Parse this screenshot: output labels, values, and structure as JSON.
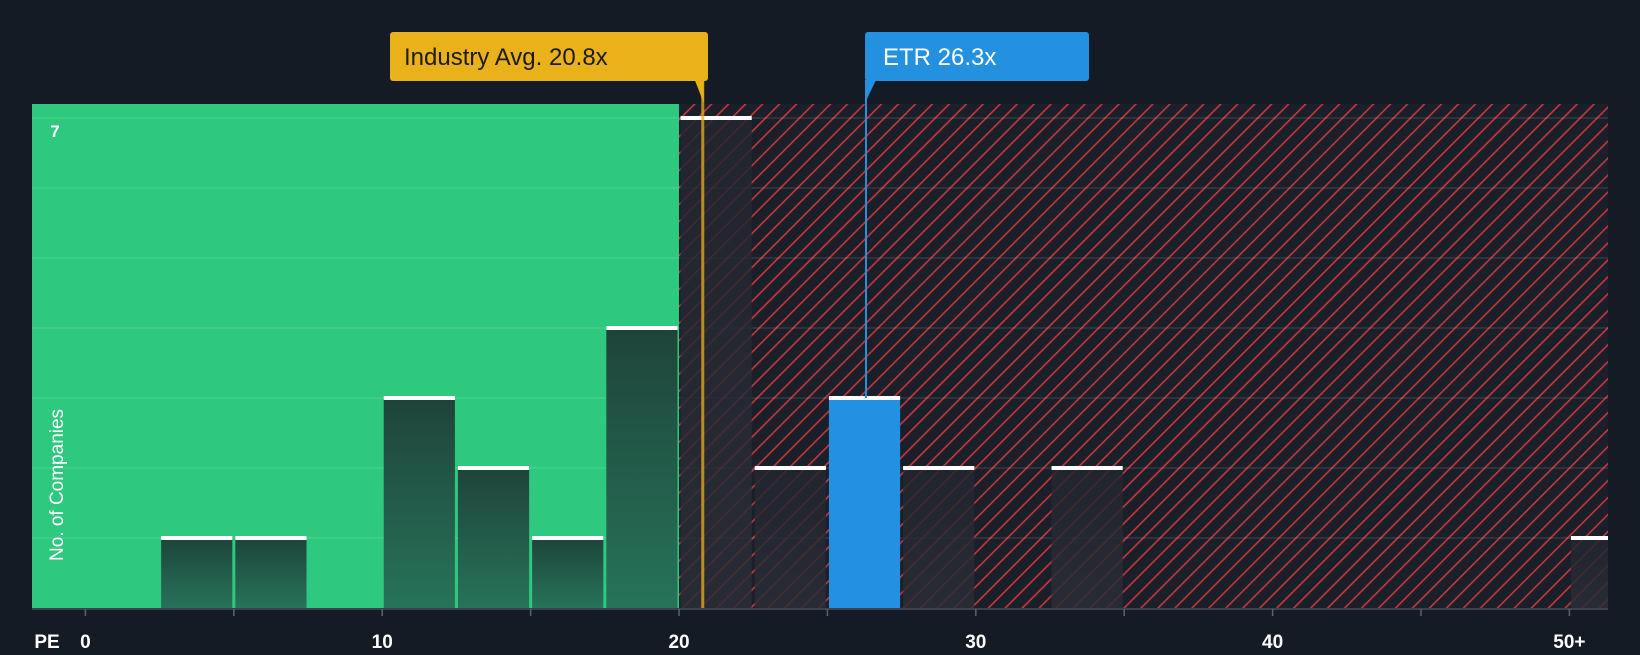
{
  "chart_data": {
    "type": "bar",
    "title": "",
    "xlabel": "PE",
    "ylabel": "No. of Companies",
    "x_ticks": [
      {
        "value": 0,
        "label": "0"
      },
      {
        "value": 10,
        "label": "10"
      },
      {
        "value": 20,
        "label": "20"
      },
      {
        "value": 30,
        "label": "30"
      },
      {
        "value": 40,
        "label": "40"
      },
      {
        "value": 50,
        "label": "50+"
      }
    ],
    "xlim": [
      -1.8,
      51.3
    ],
    "ylim": [
      0,
      7.2
    ],
    "y_tick_label": "7",
    "y_grid": [
      1,
      2,
      3,
      4,
      5,
      6,
      7
    ],
    "bin_width": 2.5,
    "bins": [
      {
        "start": 2.5,
        "count": 1,
        "zone": "below"
      },
      {
        "start": 5.0,
        "count": 1,
        "zone": "below"
      },
      {
        "start": 10.0,
        "count": 3,
        "zone": "below"
      },
      {
        "start": 12.5,
        "count": 2,
        "zone": "below"
      },
      {
        "start": 15.0,
        "count": 1,
        "zone": "below"
      },
      {
        "start": 17.5,
        "count": 4,
        "zone": "below"
      },
      {
        "start": 20.0,
        "count": 7,
        "zone": "above"
      },
      {
        "start": 22.5,
        "count": 2,
        "zone": "above"
      },
      {
        "start": 25.0,
        "count": 3,
        "zone": "highlight"
      },
      {
        "start": 27.5,
        "count": 2,
        "zone": "above"
      },
      {
        "start": 32.5,
        "count": 2,
        "zone": "above"
      },
      {
        "start": 50.0,
        "count": 1,
        "zone": "above"
      }
    ],
    "fair_value_split": 20.0,
    "industry_avg": {
      "value": 20.8,
      "label": "Industry Avg. 20.8x"
    },
    "company": {
      "value": 26.3,
      "label": "ETR 26.3x"
    },
    "colors": {
      "background": "#151b24",
      "good_zone": "#2ec97e",
      "bad_zone_stripe": "#c7363c",
      "bar_dark": "#1f4a3c",
      "bar_white_cap": "#ffffff",
      "industry": "#e9b21a",
      "company": "#2391e0",
      "axis_text": "#ffffff"
    }
  }
}
